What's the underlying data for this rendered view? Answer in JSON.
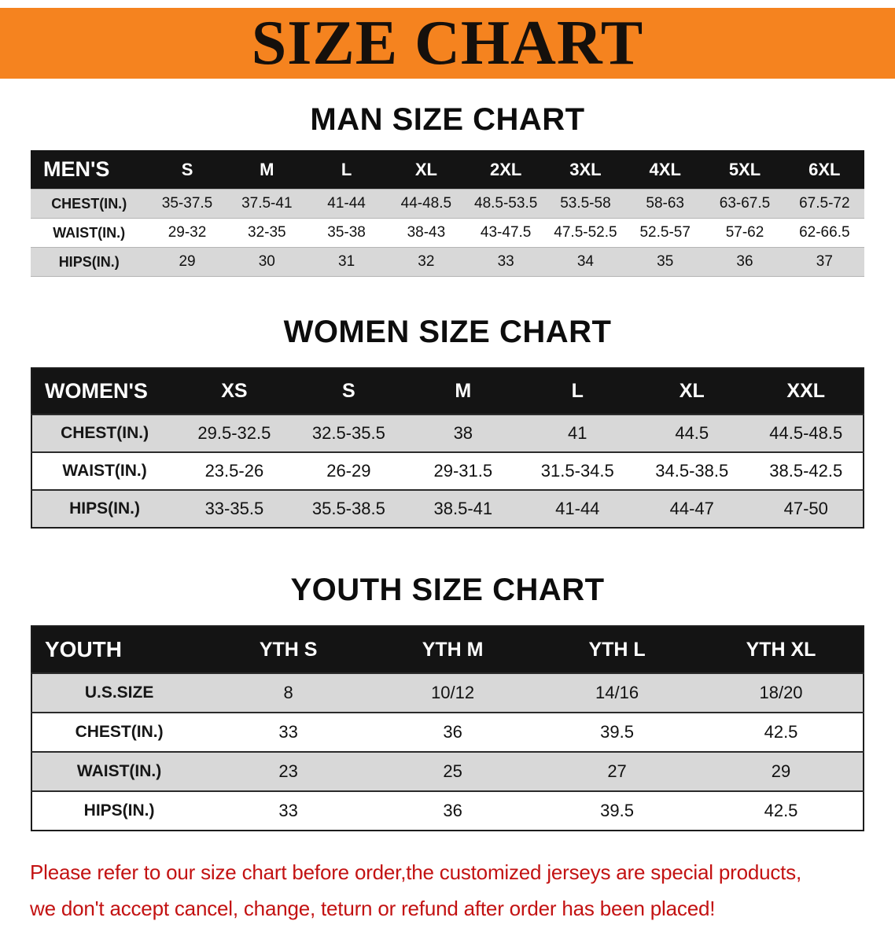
{
  "banner": {
    "title": "SIZE CHART"
  },
  "sections": [
    {
      "heading": "MAN SIZE CHART",
      "table": {
        "corner": "MEN'S",
        "columns": [
          "S",
          "M",
          "L",
          "XL",
          "2XL",
          "3XL",
          "4XL",
          "5XL",
          "6XL"
        ],
        "rows": [
          {
            "label": "CHEST(IN.)",
            "values": [
              "35-37.5",
              "37.5-41",
              "41-44",
              "44-48.5",
              "48.5-53.5",
              "53.5-58",
              "58-63",
              "63-67.5",
              "67.5-72"
            ]
          },
          {
            "label": "WAIST(IN.)",
            "values": [
              "29-32",
              "32-35",
              "35-38",
              "38-43",
              "43-47.5",
              "47.5-52.5",
              "52.5-57",
              "57-62",
              "62-66.5"
            ]
          },
          {
            "label": "HIPS(IN.)",
            "values": [
              "29",
              "30",
              "31",
              "32",
              "33",
              "34",
              "35",
              "36",
              "37"
            ]
          }
        ]
      }
    },
    {
      "heading": "WOMEN SIZE CHART",
      "table": {
        "corner": "WOMEN'S",
        "columns": [
          "XS",
          "S",
          "M",
          "L",
          "XL",
          "XXL"
        ],
        "rows": [
          {
            "label": "CHEST(IN.)",
            "values": [
              "29.5-32.5",
              "32.5-35.5",
              "38",
              "41",
              "44.5",
              "44.5-48.5"
            ]
          },
          {
            "label": "WAIST(IN.)",
            "values": [
              "23.5-26",
              "26-29",
              "29-31.5",
              "31.5-34.5",
              "34.5-38.5",
              "38.5-42.5"
            ]
          },
          {
            "label": "HIPS(IN.)",
            "values": [
              "33-35.5",
              "35.5-38.5",
              "38.5-41",
              "41-44",
              "44-47",
              "47-50"
            ]
          }
        ]
      }
    },
    {
      "heading": "YOUTH SIZE CHART",
      "table": {
        "corner": "YOUTH",
        "columns": [
          "YTH S",
          "YTH M",
          "YTH L",
          "YTH XL"
        ],
        "rows": [
          {
            "label": "U.S.SIZE",
            "values": [
              "8",
              "10/12",
              "14/16",
              "18/20"
            ]
          },
          {
            "label": "CHEST(IN.)",
            "values": [
              "33",
              "36",
              "39.5",
              "42.5"
            ]
          },
          {
            "label": "WAIST(IN.)",
            "values": [
              "23",
              "25",
              "27",
              "29"
            ]
          },
          {
            "label": "HIPS(IN.)",
            "values": [
              "33",
              "36",
              "39.5",
              "42.5"
            ]
          }
        ]
      }
    }
  ],
  "disclaimer": {
    "lines": [
      "Please refer to our size chart before order,the customized jerseys are special products,",
      "we don't accept cancel, change, teturn or refund after order has been placed!"
    ]
  },
  "colors": {
    "banner_bg": "#f5831f",
    "header_bg": "#141414",
    "stripe": "#d8d8d8",
    "disclaimer_color": "#c31212"
  }
}
